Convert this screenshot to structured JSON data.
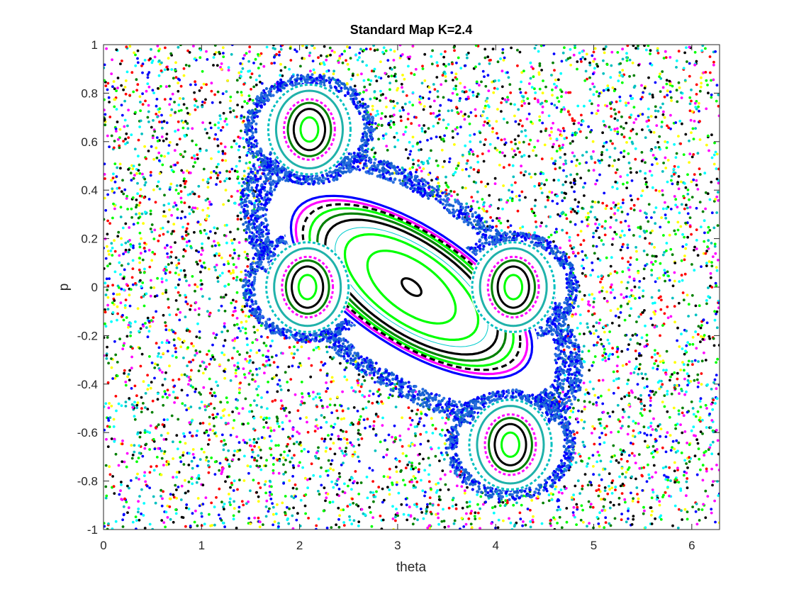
{
  "chart_data": {
    "type": "scatter",
    "title": "Standard Map K=2.4",
    "xlabel": "theta",
    "ylabel": "p",
    "xlim": [
      0,
      6.2832
    ],
    "ylim": [
      -1,
      1
    ],
    "x_ticks": [
      0,
      1,
      2,
      3,
      4,
      5,
      6
    ],
    "y_ticks": [
      -1,
      -0.8,
      -0.6,
      -0.4,
      -0.2,
      0,
      0.2,
      0.4,
      0.6,
      0.8,
      1
    ],
    "x_tick_labels": [
      "0",
      "1",
      "2",
      "3",
      "4",
      "5",
      "6"
    ],
    "y_tick_labels": [
      "-1",
      "-0.8",
      "-0.6",
      "-0.4",
      "-0.2",
      "0",
      "0.2",
      "0.4",
      "0.6",
      "0.8",
      "1"
    ],
    "K": 2.4,
    "grid": false,
    "legend": "none",
    "chaotic_sea_colors": [
      "#0000ff",
      "#ff0000",
      "#ff00ff",
      "#ffff00",
      "#00ffff",
      "#000000",
      "#008000",
      "#00ff00",
      "#00c0c0"
    ],
    "chaotic_sea_point_count": 5500,
    "boundary_layer_colors": [
      "#0000ff",
      "#1560d0",
      "#2a6fe0"
    ],
    "main_island": {
      "center": [
        3.1416,
        0.0
      ],
      "orbits": [
        {
          "a": 0.1,
          "b": 0.03,
          "color": "#000000",
          "style": "solid"
        },
        {
          "a": 0.45,
          "b": 0.12,
          "color": "#00ff00",
          "style": "solid"
        },
        {
          "a": 0.68,
          "b": 0.17,
          "color": "#00ff00",
          "style": "solid"
        },
        {
          "a": 0.78,
          "b": 0.19,
          "color": "#00cccc",
          "style": "thin"
        },
        {
          "a": 0.88,
          "b": 0.215,
          "color": "#000000",
          "style": "solid"
        },
        {
          "a": 0.96,
          "b": 0.235,
          "color": "#008000",
          "style": "solid"
        },
        {
          "a": 1.04,
          "b": 0.25,
          "color": "#00ff00",
          "style": "solid"
        },
        {
          "a": 1.11,
          "b": 0.26,
          "color": "#000000",
          "style": "dashed"
        },
        {
          "a": 1.18,
          "b": 0.27,
          "color": "#ff00ff",
          "style": "solid"
        },
        {
          "a": 1.23,
          "b": 0.285,
          "color": "#0000ff",
          "style": "solid"
        }
      ]
    },
    "period4_islands": [
      {
        "center": [
          2.1,
          0.65
        ]
      },
      {
        "center": [
          2.08,
          0.0
        ]
      },
      {
        "center": [
          4.18,
          0.0
        ]
      },
      {
        "center": [
          4.15,
          -0.65
        ]
      }
    ],
    "period4_orbit_colors": [
      "#00ff00",
      "#000000",
      "#008000",
      "#ff00ff",
      "#20b2aa",
      "#00c0c0"
    ]
  }
}
